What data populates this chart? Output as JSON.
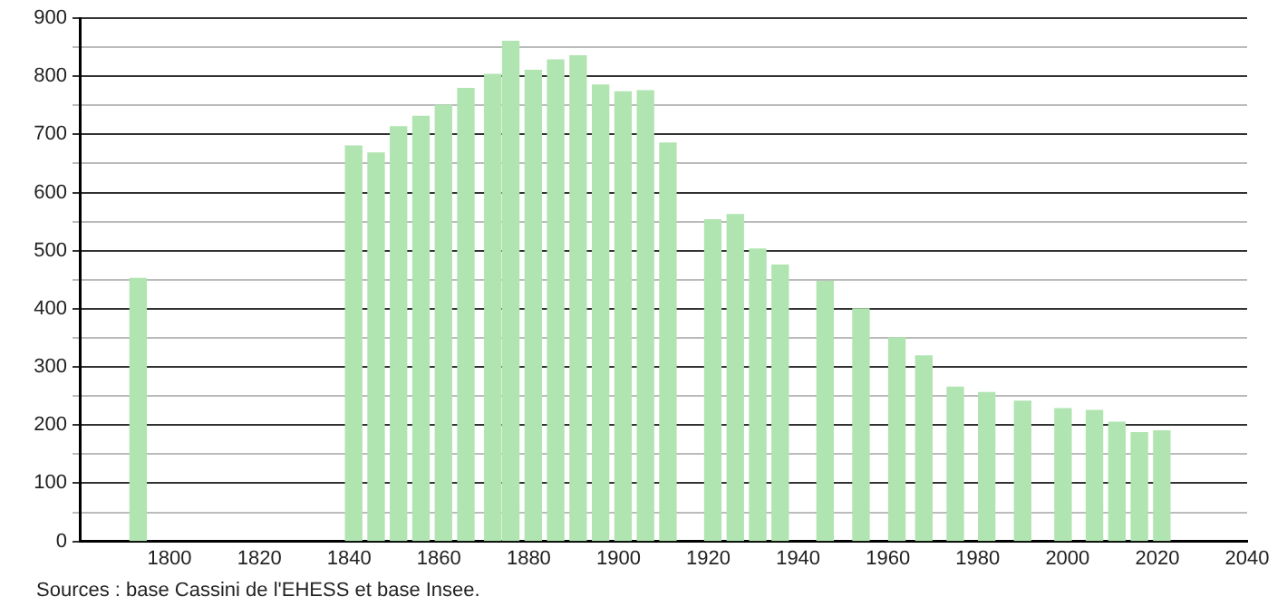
{
  "chart_data": {
    "type": "bar",
    "x": [
      1793,
      1841,
      1846,
      1851,
      1856,
      1861,
      1866,
      1872,
      1876,
      1881,
      1886,
      1891,
      1896,
      1901,
      1906,
      1911,
      1921,
      1926,
      1931,
      1936,
      1946,
      1954,
      1962,
      1968,
      1975,
      1982,
      1990,
      1999,
      2006,
      2011,
      2016,
      2021
    ],
    "values": [
      452,
      680,
      668,
      713,
      731,
      750,
      779,
      803,
      860,
      810,
      828,
      835,
      785,
      773,
      775,
      685,
      553,
      562,
      503,
      475,
      447,
      400,
      350,
      319,
      265,
      256,
      241,
      228,
      225,
      205,
      187,
      190
    ],
    "color": "#b0e4b0",
    "xlim": [
      1780,
      2040
    ],
    "xticks": [
      1800,
      1820,
      1840,
      1860,
      1880,
      1900,
      1920,
      1940,
      1960,
      1980,
      2000,
      2020,
      2040
    ],
    "ylim": [
      0,
      900
    ],
    "yticks": [
      0,
      {
        "value": 50,
        "label": null
      },
      100,
      {
        "value": 150,
        "label": null
      },
      200,
      {
        "value": 250,
        "label": null
      },
      300,
      {
        "value": 350,
        "label": null
      },
      400,
      {
        "value": 450,
        "label": null
      },
      500,
      {
        "value": 550,
        "label": null
      },
      600,
      {
        "value": 650,
        "label": null
      },
      700,
      {
        "value": 750,
        "label": null
      },
      800,
      {
        "value": 850,
        "label": null
      },
      900
    ],
    "grid": "y",
    "legend": false,
    "annotations": [
      "Sources : base Cassini de l'EHESS et base Insee."
    ]
  }
}
